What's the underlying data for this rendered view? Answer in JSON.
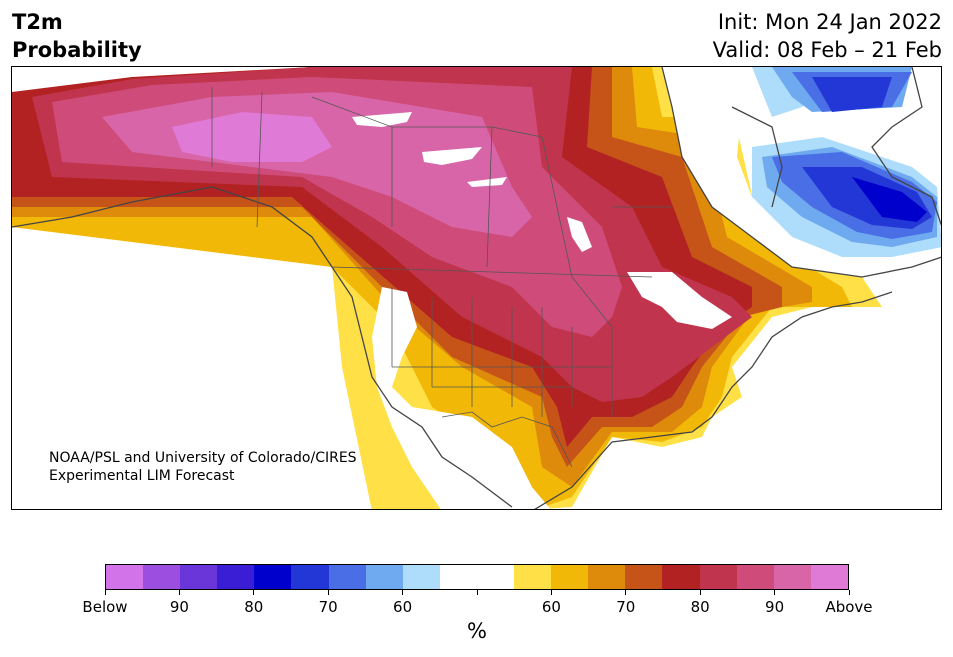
{
  "header": {
    "variable": "T2m",
    "product": "Probability",
    "init": "Init: Mon 24 Jan 2022",
    "valid": "Valid: 08 Feb – 21 Feb"
  },
  "credit": {
    "line1": "NOAA/PSL and University of Colorado/CIRES",
    "line2": "Experimental LIM Forecast"
  },
  "colorbar": {
    "colors": [
      "#d273ea",
      "#9b4ee0",
      "#6a36d9",
      "#3a1ed6",
      "#0000cc",
      "#2337d6",
      "#4a6ee6",
      "#6fa9ef",
      "#aedcfb",
      "#ffffff",
      "#ffffff",
      "#ffe046",
      "#f2b807",
      "#de8b0c",
      "#c65418",
      "#b22222",
      "#c1344d",
      "#cf4c7a",
      "#d765a8",
      "#e07ad7"
    ],
    "labels": [
      "Below",
      "90",
      "80",
      "70",
      "60",
      "",
      "60",
      "70",
      "80",
      "90",
      "Above"
    ],
    "unit": "%"
  },
  "legend_semantics": {
    "below_categories_color": "#0000cc",
    "above_categories_color": "#b22222"
  }
}
